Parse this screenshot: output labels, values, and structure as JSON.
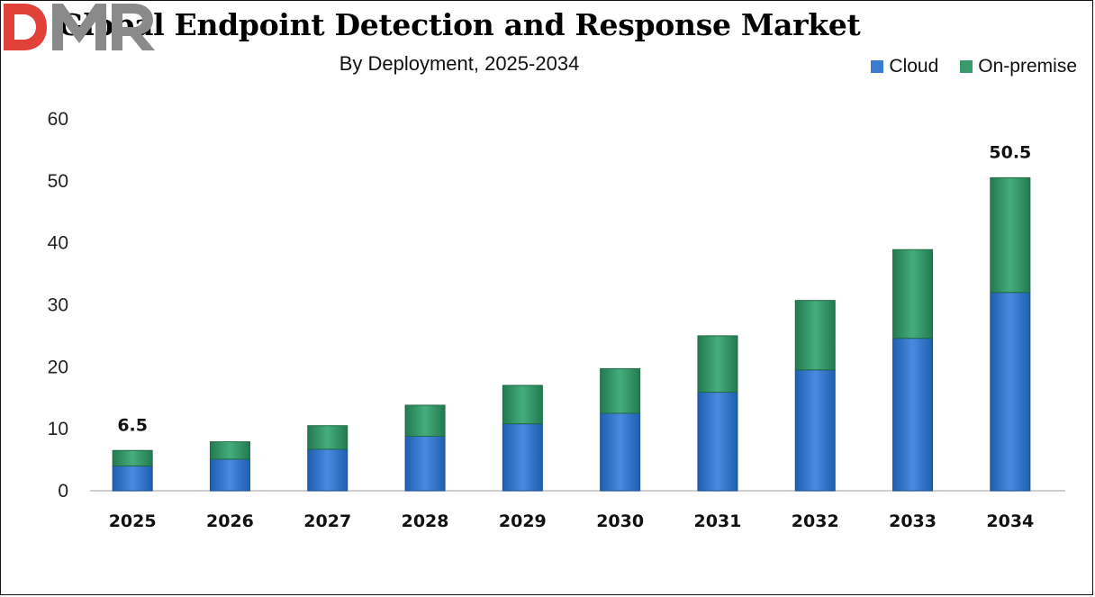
{
  "chart_data": {
    "type": "bar",
    "stacked": true,
    "title": "Global Endpoint Detection and Response Market",
    "subtitle": "By Deployment, 2025-2034",
    "categories": [
      "2025",
      "2026",
      "2027",
      "2028",
      "2029",
      "2030",
      "2031",
      "2032",
      "2033",
      "2034"
    ],
    "series": [
      {
        "name": "Cloud",
        "color": "#3b7bd0",
        "values": [
          4.0,
          5.1,
          6.7,
          8.8,
          10.8,
          12.5,
          15.9,
          19.5,
          24.6,
          32.0
        ]
      },
      {
        "name": "On-premise",
        "color": "#3a9a6e",
        "values": [
          2.5,
          2.8,
          3.8,
          5.0,
          6.2,
          7.2,
          9.1,
          11.2,
          14.3,
          18.5
        ]
      }
    ],
    "data_labels": [
      {
        "category": "2025",
        "text": "6.5"
      },
      {
        "category": "2034",
        "text": "50.5"
      }
    ],
    "ylim": [
      0,
      60
    ],
    "yticks": [
      0,
      10,
      20,
      30,
      40,
      50,
      60
    ],
    "grid": false,
    "legend_position": "top-right"
  },
  "logo": {
    "text": "DMR",
    "colors": [
      "#e0423a",
      "#8a8a8a"
    ]
  }
}
